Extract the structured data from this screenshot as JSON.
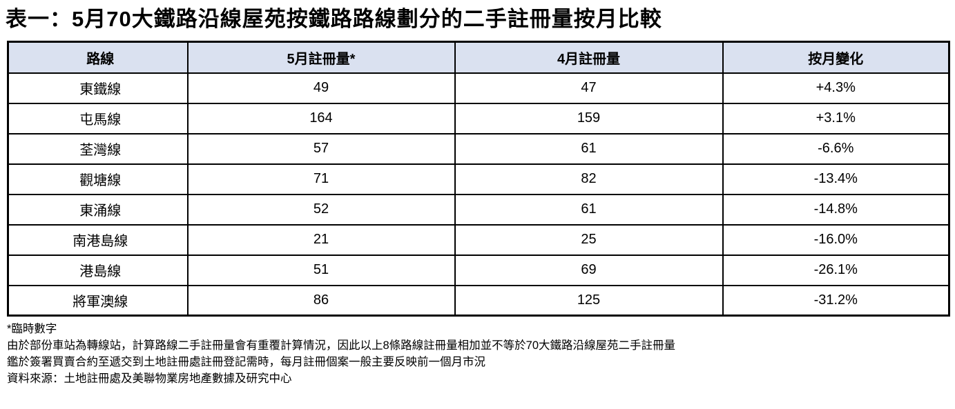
{
  "title": "表一：5月70大鐵路沿線屋苑按鐵路路線劃分的二手註冊量按月比較",
  "table": {
    "header_bg": "#dae1f0",
    "border_color": "#000000",
    "columns": [
      "路線",
      "5月註冊量*",
      "4月註冊量",
      "按月變化"
    ],
    "rows": [
      {
        "line": "東鐵線",
        "may": "49",
        "apr": "47",
        "change": "+4.3%"
      },
      {
        "line": "屯馬線",
        "may": "164",
        "apr": "159",
        "change": "+3.1%"
      },
      {
        "line": "荃灣線",
        "may": "57",
        "apr": "61",
        "change": "-6.6%"
      },
      {
        "line": "觀塘線",
        "may": "71",
        "apr": "82",
        "change": "-13.4%"
      },
      {
        "line": "東涌線",
        "may": "52",
        "apr": "61",
        "change": "-14.8%"
      },
      {
        "line": "南港島線",
        "may": "21",
        "apr": "25",
        "change": "-16.0%"
      },
      {
        "line": "港島線",
        "may": "51",
        "apr": "69",
        "change": "-26.1%"
      },
      {
        "line": "將軍澳線",
        "may": "86",
        "apr": "125",
        "change": "-31.2%"
      }
    ]
  },
  "chart_data": {
    "type": "table",
    "title": "表一：5月70大鐵路沿線屋苑按鐵路路線劃分的二手註冊量按月比較",
    "categories": [
      "東鐵線",
      "屯馬線",
      "荃灣線",
      "觀塘線",
      "東涌線",
      "南港島線",
      "港島線",
      "將軍澳線"
    ],
    "series": [
      {
        "name": "5月註冊量*",
        "values": [
          49,
          164,
          57,
          71,
          52,
          21,
          51,
          86
        ]
      },
      {
        "name": "4月註冊量",
        "values": [
          47,
          159,
          61,
          82,
          61,
          25,
          69,
          125
        ]
      },
      {
        "name": "按月變化",
        "values": [
          "+4.3%",
          "+3.1%",
          "-6.6%",
          "-13.4%",
          "-14.8%",
          "-16.0%",
          "-26.1%",
          "-31.2%"
        ]
      }
    ]
  },
  "notes": [
    "*臨時數字",
    "由於部份車站為轉線站，計算路線二手註冊量會有重覆計算情況，因此以上8條路線註冊量相加並不等於70大鐵路沿線屋苑二手註冊量",
    "鑑於簽署買賣合約至遞交到土地註冊處註冊登記需時，每月註冊個案一般主要反映前一個月市況",
    "資料來源：土地註冊處及美聯物業房地產數據及研究中心"
  ]
}
